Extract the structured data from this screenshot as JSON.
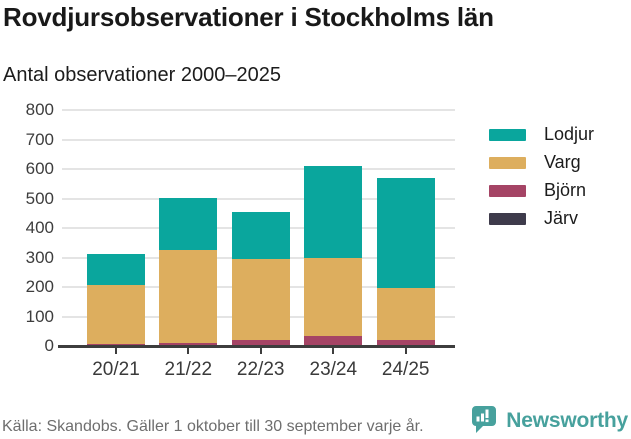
{
  "header": {
    "title": "Rovdjursobservationer i Stockholms län",
    "subtitle": "Antal observationer 2000–2025"
  },
  "chart_data": {
    "type": "bar",
    "stacked": true,
    "title": "Rovdjursobservationer i Stockholms län",
    "subtitle": "Antal observationer 2000–2025",
    "categories": [
      "20/21",
      "21/22",
      "22/23",
      "23/24",
      "24/25"
    ],
    "series": [
      {
        "name": "Lodjur",
        "color": "#0aa69d",
        "values": [
          104,
          176,
          160,
          312,
          375
        ]
      },
      {
        "name": "Varg",
        "color": "#ddae5e",
        "values": [
          200,
          318,
          274,
          264,
          176
        ]
      },
      {
        "name": "Björn",
        "color": "#a54465",
        "values": [
          6,
          8,
          18,
          30,
          18
        ]
      },
      {
        "name": "Järv",
        "color": "#3e3b4b",
        "values": [
          1,
          1,
          2,
          3,
          2
        ]
      }
    ],
    "stack_order_bottom_to_top": [
      "Järv",
      "Björn",
      "Varg",
      "Lodjur"
    ],
    "totals": [
      311,
      503,
      454,
      609,
      571
    ],
    "xlabel": "",
    "ylabel": "",
    "ylim": [
      0,
      800
    ],
    "yticks": [
      0,
      100,
      200,
      300,
      400,
      500,
      600,
      700,
      800
    ],
    "grid": true,
    "legend_position": "right",
    "axis_color": "#3d3d3d",
    "grid_color": "#e4e4e4"
  },
  "footer": {
    "source": "Källa: Skandobs. Gäller 1 oktober till 30 september varje år.",
    "brand": "Newsworthy",
    "brand_color": "#47a19d"
  }
}
